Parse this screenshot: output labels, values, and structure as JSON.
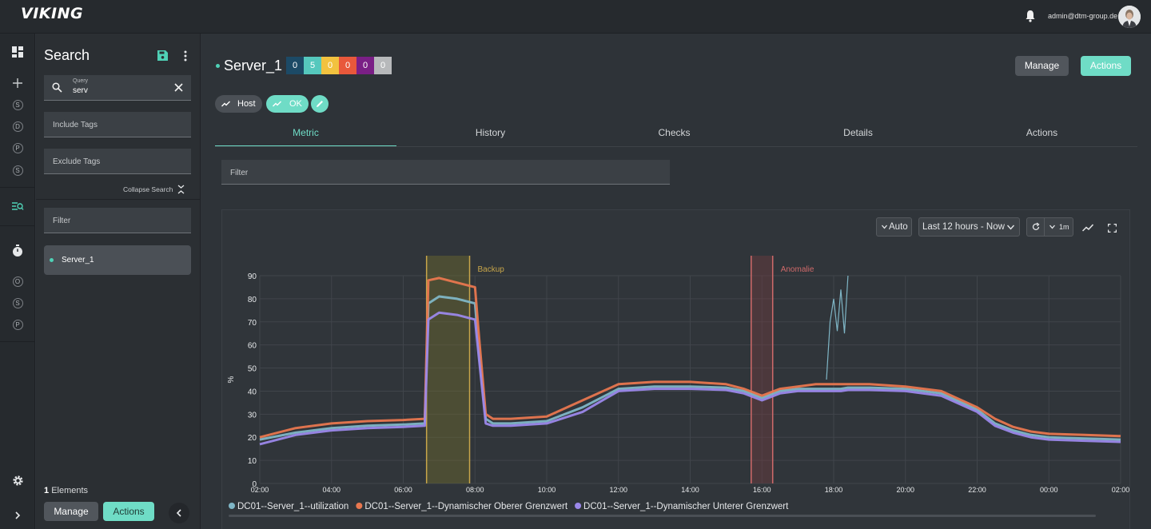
{
  "app": {
    "logo_text": "VIKING"
  },
  "topbar": {
    "user_email": "admin@dtm-group.de"
  },
  "rail": {
    "letters_top": [
      "S",
      "D",
      "P",
      "S"
    ],
    "letters_bottom": [
      "O",
      "S",
      "P"
    ]
  },
  "search_panel": {
    "title": "Search",
    "query_label": "Query",
    "query_value": "serv",
    "include_tags_placeholder": "Include Tags",
    "exclude_tags_placeholder": "Exclude Tags",
    "collapse_label": "Collapse Search",
    "filter_placeholder": "Filter",
    "results": [
      {
        "name": "Server_1"
      }
    ],
    "elements_count": "1",
    "elements_label": "Elements",
    "manage_label": "Manage",
    "actions_label": "Actions"
  },
  "host": {
    "name": "Server_1",
    "status_counts": [
      {
        "value": "0",
        "color": "#1c4a66"
      },
      {
        "value": "5",
        "color": "#55c8bd"
      },
      {
        "value": "0",
        "color": "#f2c23f"
      },
      {
        "value": "0",
        "color": "#e8583b"
      },
      {
        "value": "0",
        "color": "#7a1f86"
      },
      {
        "value": "0",
        "color": "#b7b9bb"
      }
    ],
    "type_label": "Host",
    "status_label": "OK",
    "manage_label": "Manage",
    "actions_label": "Actions"
  },
  "tabs": [
    {
      "label": "Metric",
      "active": true
    },
    {
      "label": "History",
      "active": false
    },
    {
      "label": "Checks",
      "active": false
    },
    {
      "label": "Details",
      "active": false
    },
    {
      "label": "Actions",
      "active": false
    }
  ],
  "metric": {
    "filter_placeholder": "Filter",
    "auto_label": "Auto",
    "time_range": "Last 12 hours - Now",
    "refresh_interval": "1m"
  },
  "chart_data": {
    "type": "line",
    "ylabel": "%",
    "ylim": [
      0,
      90
    ],
    "y_ticks": [
      0,
      10,
      20,
      30,
      40,
      50,
      60,
      70,
      80,
      90
    ],
    "x_ticks": [
      "02:00",
      "04:00",
      "06:00",
      "08:00",
      "10:00",
      "12:00",
      "14:00",
      "16:00",
      "18:00",
      "20:00",
      "22:00",
      "00:00",
      "02:00"
    ],
    "x_hours": [
      0,
      1,
      2,
      3,
      4,
      4.6,
      4.7,
      5,
      5.5,
      6,
      6.1,
      6.3,
      6.5,
      7,
      8,
      9,
      10,
      11,
      12,
      13,
      13.5,
      14,
      14.5,
      15,
      15.5,
      15.8,
      16.2,
      16.4,
      17,
      18,
      19,
      20,
      20.5,
      21,
      21.5,
      22,
      23,
      24
    ],
    "series": [
      {
        "name": "DC01--Server_1--utilization",
        "color": "#7fb6c6",
        "values": [
          19,
          22,
          24,
          25,
          25.5,
          26,
          78,
          81,
          80,
          78,
          60,
          28,
          26,
          26,
          27,
          33,
          41,
          42,
          42,
          41.5,
          40,
          37,
          40,
          41,
          41,
          41,
          41,
          41.5,
          41.5,
          41,
          39,
          32,
          26,
          23,
          21,
          20,
          19.5,
          19
        ]
      },
      {
        "name": "DC01--Server_1--Dynamischer Oberer Grenzwert",
        "color": "#e8774f",
        "values": [
          20,
          24,
          26,
          27,
          27.5,
          28,
          88,
          89,
          87,
          85,
          66,
          30,
          28,
          28,
          29,
          36,
          43,
          44,
          44,
          43,
          41,
          38,
          41,
          42,
          43,
          43,
          43,
          43,
          43,
          42,
          40,
          33,
          28,
          24.5,
          22.5,
          21.5,
          21,
          20.5
        ]
      },
      {
        "name": "DC01--Server_1--Dynamischer Unterer Grenzwert",
        "color": "#9b88ea",
        "values": [
          17,
          21,
          23,
          24,
          24.5,
          25,
          71,
          74,
          73,
          71,
          56,
          26,
          25,
          25,
          26,
          31,
          40,
          41,
          41,
          40.5,
          39,
          36,
          39,
          40,
          40,
          40,
          40,
          40.5,
          40.5,
          40,
          38,
          31,
          25,
          22,
          20,
          19,
          18.5,
          18
        ]
      }
    ],
    "anomaly_spike": {
      "x_hours": [
        15.8,
        15.9,
        16.0,
        16.1,
        16.2,
        16.3,
        16.4
      ],
      "values": [
        45,
        70,
        80,
        66,
        84,
        65,
        90
      ]
    },
    "annotations": [
      {
        "label": "Backup",
        "start_hour": 4.65,
        "end_hour": 5.85,
        "color": "#c8a64a",
        "fill": "#6e6a2e"
      },
      {
        "label": "Anomalie",
        "start_hour": 13.7,
        "end_hour": 14.3,
        "color": "#d06a6a",
        "fill": "#6e3c40"
      }
    ],
    "grid": true,
    "legend_position": "bottom-left"
  }
}
